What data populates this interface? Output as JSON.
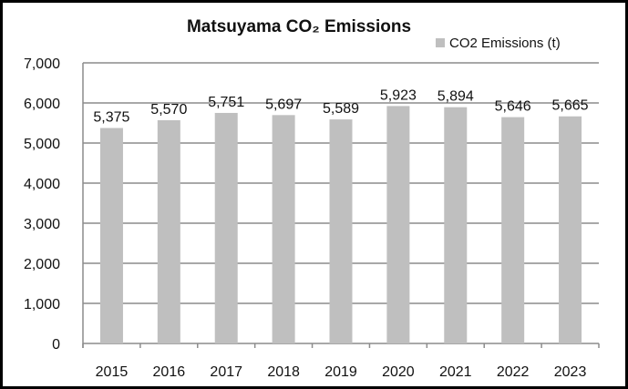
{
  "chart_data": {
    "type": "bar",
    "title": "Matsuyama CO₂ Emissions",
    "categories": [
      "2015",
      "2016",
      "2017",
      "2018",
      "2019",
      "2020",
      "2021",
      "2022",
      "2023"
    ],
    "series": [
      {
        "name": "CO2 Emissions (t)",
        "values": [
          5375,
          5570,
          5751,
          5697,
          5589,
          5923,
          5894,
          5646,
          5665
        ]
      }
    ],
    "data_labels": [
      "5,375",
      "5,570",
      "5,751",
      "5,697",
      "5,589",
      "5,923",
      "5,894",
      "5,646",
      "5,665"
    ],
    "yticks": [
      "0",
      "1,000",
      "2,000",
      "3,000",
      "4,000",
      "5,000",
      "6,000",
      "7,000"
    ],
    "ylim": [
      0,
      7000
    ],
    "xlabel": "",
    "ylabel": "",
    "grid": true,
    "legend": "top-right",
    "colors": {
      "bar": "#bfbfbf",
      "grid": "#8c8c8c"
    }
  }
}
